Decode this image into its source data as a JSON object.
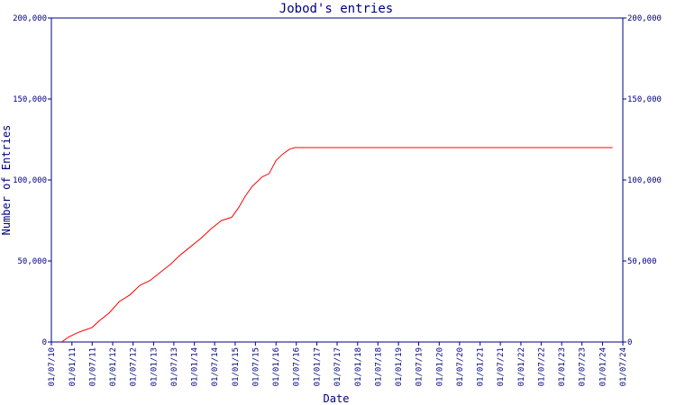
{
  "chart_data": {
    "type": "line",
    "title": "Jobod's entries",
    "xlabel": "Date",
    "ylabel": "Number of Entries",
    "grid": false,
    "x_axis": {
      "type": "date",
      "range": [
        "2010-07-01",
        "2024-07-01"
      ],
      "tick_labels": [
        "01/07/10",
        "01/01/11",
        "01/07/11",
        "01/01/12",
        "01/07/12",
        "01/01/13",
        "01/07/13",
        "01/01/14",
        "01/07/14",
        "01/01/15",
        "01/07/15",
        "01/01/16",
        "01/07/16",
        "01/01/17",
        "01/07/17",
        "01/01/18",
        "01/07/18",
        "01/01/19",
        "01/07/19",
        "01/01/20",
        "01/07/20",
        "01/01/21",
        "01/07/21",
        "01/01/22",
        "01/07/22",
        "01/01/23",
        "01/07/23",
        "01/01/24",
        "01/07/24"
      ]
    },
    "y_axis": {
      "range": [
        0,
        200000
      ],
      "tick_values": [
        0,
        50000,
        100000,
        150000,
        200000
      ],
      "tick_labels": [
        "0",
        "50,000",
        "100,000",
        "150,000",
        "200,000"
      ]
    },
    "series": [
      {
        "color": "#ff0000",
        "points": [
          [
            "2010-10-01",
            0
          ],
          [
            "2010-12-01",
            3000
          ],
          [
            "2011-03-01",
            6000
          ],
          [
            "2011-05-01",
            7500
          ],
          [
            "2011-07-01",
            9000
          ],
          [
            "2011-09-01",
            13000
          ],
          [
            "2011-12-01",
            18000
          ],
          [
            "2012-03-01",
            25000
          ],
          [
            "2012-06-01",
            29000
          ],
          [
            "2012-09-01",
            35000
          ],
          [
            "2012-12-01",
            38000
          ],
          [
            "2013-03-01",
            43000
          ],
          [
            "2013-06-01",
            48000
          ],
          [
            "2013-09-01",
            54000
          ],
          [
            "2013-12-01",
            59000
          ],
          [
            "2014-03-01",
            64000
          ],
          [
            "2014-06-01",
            70000
          ],
          [
            "2014-09-01",
            75000
          ],
          [
            "2014-12-01",
            77000
          ],
          [
            "2015-02-01",
            83000
          ],
          [
            "2015-04-01",
            90000
          ],
          [
            "2015-06-01",
            96000
          ],
          [
            "2015-09-01",
            102000
          ],
          [
            "2015-11-01",
            104000
          ],
          [
            "2016-01-01",
            112000
          ],
          [
            "2016-03-01",
            116000
          ],
          [
            "2016-05-01",
            119000
          ],
          [
            "2016-06-15",
            120000
          ],
          [
            "2024-04-01",
            120000
          ]
        ]
      }
    ]
  }
}
